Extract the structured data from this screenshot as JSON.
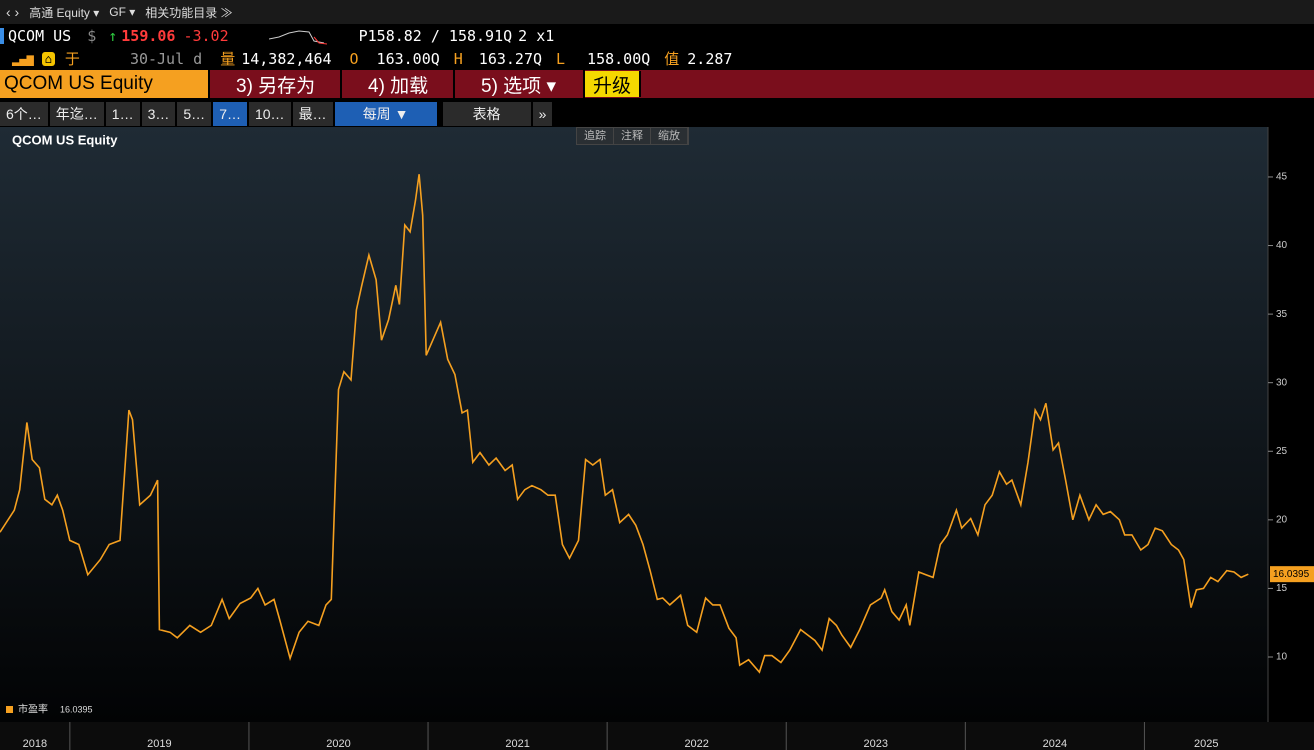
{
  "toolbar": {
    "security": "高通 Equity ▾",
    "code": "GF ▾",
    "menu": "相关功能目录 ≫"
  },
  "quote": {
    "ticker": "QCOM US",
    "currency": "$",
    "arrow": "↑",
    "last": "159.06",
    "change": "-3.02",
    "bid_ask": "P158.82 / 158.91Q",
    "size": "2 x1",
    "source": "于",
    "date": "30-Jul d",
    "volume_label": "量",
    "volume": "14,382,464",
    "open_label": "O",
    "open": "163.00Q",
    "high_label": "H",
    "high": "163.27Q",
    "low_label": "L",
    "low": "158.00Q",
    "value_label": "值",
    "value": "2.287"
  },
  "tabs": {
    "security": "QCOM US Equity",
    "save": "3) 另存为",
    "load": "4) 加载",
    "options": "5) 选项 ▾",
    "upgrade": "升级"
  },
  "periods": [
    "6个…",
    "年迄…",
    "1…",
    "3…",
    "5…",
    "7…",
    "10…",
    "最…"
  ],
  "frequency": "每周 ▼",
  "table": "表格",
  "more": "»",
  "chart_tools": [
    "追踪",
    "注释",
    "缩放"
  ],
  "chart_data": {
    "type": "line",
    "title": "QCOM US Equity",
    "xlim": [
      2018.61,
      2025.69
    ],
    "xticks": [
      2018,
      2019,
      2020,
      2021,
      2022,
      2023,
      2024,
      2025
    ],
    "ylim": [
      5.26,
      48.57
    ],
    "yticks": [
      10,
      15,
      20,
      25,
      30,
      35,
      40,
      45
    ],
    "grid": false,
    "series": [
      {
        "name": "市盈率",
        "color": "#f5a020",
        "x": [
          2018.61,
          2018.69,
          2018.72,
          2018.76,
          2018.79,
          2018.83,
          2018.86,
          2018.9,
          2018.93,
          2018.96,
          2019.0,
          2019.05,
          2019.1,
          2019.17,
          2019.22,
          2019.28,
          2019.33,
          2019.35,
          2019.39,
          2019.45,
          2019.49,
          2019.5,
          2019.56,
          2019.6,
          2019.67,
          2019.73,
          2019.79,
          2019.85,
          2019.89,
          2019.95,
          2020.01,
          2020.05,
          2020.09,
          2020.14,
          2020.17,
          2020.23,
          2020.28,
          2020.33,
          2020.39,
          2020.43,
          2020.46,
          2020.5,
          2020.53,
          2020.57,
          2020.6,
          2020.63,
          2020.67,
          2020.71,
          2020.74,
          2020.78,
          2020.82,
          2020.84,
          2020.87,
          2020.9,
          2020.93,
          2020.95,
          2020.97,
          2020.99,
          2021.04,
          2021.07,
          2021.11,
          2021.15,
          2021.19,
          2021.22,
          2021.25,
          2021.29,
          2021.34,
          2021.38,
          2021.43,
          2021.47,
          2021.5,
          2021.54,
          2021.58,
          2021.63,
          2021.67,
          2021.71,
          2021.75,
          2021.79,
          2021.84,
          2021.88,
          2021.92,
          2021.96,
          2021.99,
          2022.03,
          2022.07,
          2022.12,
          2022.16,
          2022.2,
          2022.24,
          2022.28,
          2022.31,
          2022.35,
          2022.41,
          2022.45,
          2022.5,
          2022.55,
          2022.59,
          2022.63,
          2022.68,
          2022.72,
          2022.74,
          2022.79,
          2022.85,
          2022.88,
          2022.92,
          2022.97,
          2023.02,
          2023.08,
          2023.12,
          2023.16,
          2023.2,
          2023.24,
          2023.28,
          2023.31,
          2023.36,
          2023.41,
          2023.47,
          2023.53,
          2023.55,
          2023.59,
          2023.63,
          2023.67,
          2023.69,
          2023.74,
          2023.78,
          2023.82,
          2023.86,
          2023.9,
          2023.95,
          2023.98,
          2024.03,
          2024.07,
          2024.11,
          2024.15,
          2024.19,
          2024.23,
          2024.26,
          2024.31,
          2024.35,
          2024.39,
          2024.42,
          2024.45,
          2024.49,
          2024.52,
          2024.56,
          2024.6,
          2024.64,
          2024.69,
          2024.73,
          2024.77,
          2024.81,
          2024.86,
          2024.89,
          2024.93,
          2024.98,
          2025.02,
          2025.06,
          2025.1,
          2025.15,
          2025.19,
          2025.22,
          2025.26,
          2025.29,
          2025.33,
          2025.37,
          2025.41,
          2025.46,
          2025.5,
          2025.54,
          2025.58
        ],
        "values": [
          19.1,
          20.7,
          22.2,
          27.1,
          24.4,
          23.8,
          21.5,
          21.1,
          21.8,
          20.7,
          18.5,
          18.2,
          16.0,
          17.1,
          18.2,
          18.5,
          28.0,
          27.3,
          21.1,
          21.8,
          22.9,
          12.0,
          11.8,
          11.4,
          12.3,
          11.8,
          12.3,
          14.2,
          12.8,
          13.9,
          14.3,
          15.0,
          13.8,
          14.2,
          12.8,
          9.9,
          11.8,
          12.6,
          12.3,
          13.8,
          14.2,
          29.5,
          30.8,
          30.2,
          35.3,
          37.1,
          39.3,
          37.5,
          33.1,
          34.6,
          37.1,
          35.7,
          41.5,
          41.0,
          43.3,
          45.2,
          42.2,
          32.0,
          33.5,
          34.4,
          31.7,
          30.6,
          27.8,
          28.0,
          24.2,
          24.9,
          24.0,
          24.5,
          23.6,
          24.0,
          21.5,
          22.2,
          22.5,
          22.2,
          21.8,
          21.8,
          18.2,
          17.2,
          18.5,
          24.4,
          24.0,
          24.4,
          21.8,
          22.2,
          19.8,
          20.4,
          19.6,
          18.2,
          16.3,
          14.2,
          14.3,
          13.8,
          14.5,
          12.3,
          11.8,
          14.3,
          13.8,
          13.8,
          12.1,
          11.4,
          9.4,
          9.8,
          8.9,
          10.1,
          10.1,
          9.6,
          10.5,
          12.0,
          11.6,
          11.2,
          10.5,
          12.8,
          12.3,
          11.6,
          10.7,
          12.0,
          13.8,
          14.3,
          14.9,
          13.3,
          12.7,
          13.8,
          12.3,
          16.2,
          16.0,
          15.8,
          18.2,
          18.9,
          20.7,
          19.4,
          20.1,
          18.9,
          21.1,
          21.8,
          23.5,
          22.6,
          22.9,
          21.1,
          24.2,
          28.0,
          27.3,
          28.5,
          25.1,
          25.6,
          22.9,
          20.0,
          21.8,
          20.0,
          21.1,
          20.4,
          20.6,
          20.0,
          18.9,
          18.9,
          17.8,
          18.2,
          19.4,
          19.2,
          18.2,
          17.8,
          17.1,
          13.6,
          14.9,
          15.0,
          15.8,
          15.5,
          16.3,
          16.2,
          15.8,
          16.0395
        ]
      }
    ]
  }
}
